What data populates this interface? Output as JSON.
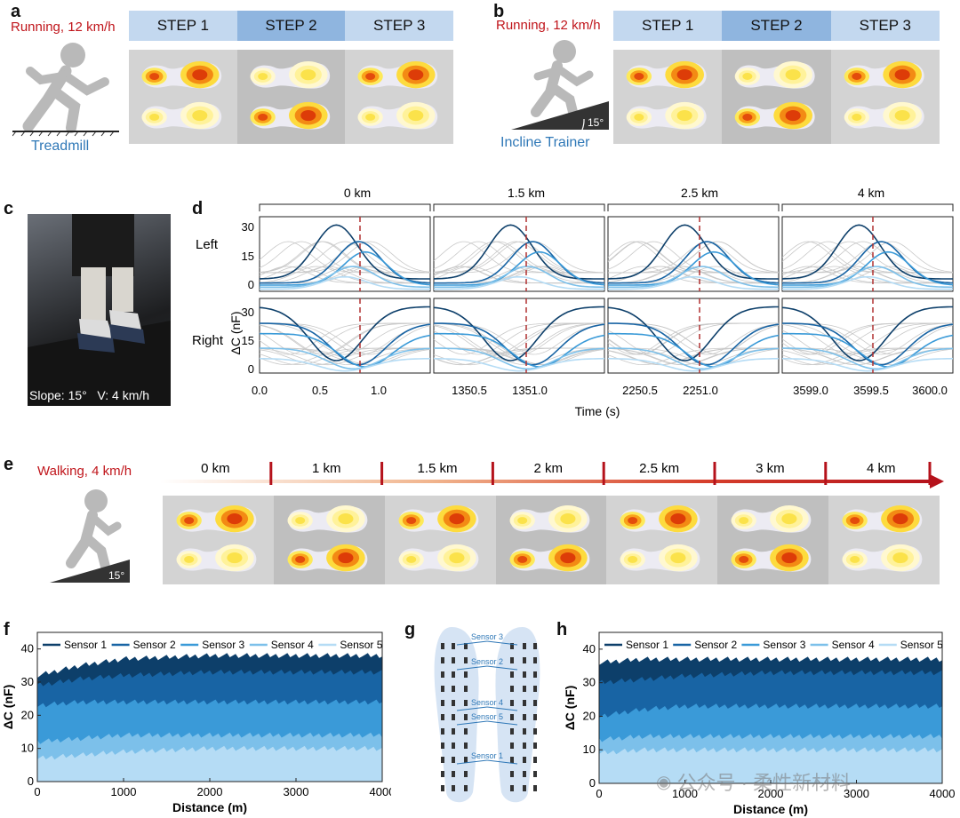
{
  "panel_a": {
    "letter": "a",
    "mode": "Running, 12 km/h",
    "device": "Treadmill",
    "steps": [
      "STEP 1",
      "STEP 2",
      "STEP 3"
    ]
  },
  "panel_b": {
    "letter": "b",
    "mode": "Running, 12 km/h",
    "device": "Incline Trainer",
    "angle": "15°",
    "steps": [
      "STEP 1",
      "STEP 2",
      "STEP 3"
    ]
  },
  "panel_c": {
    "letter": "c",
    "caption": "Slope: 15°   V: 4 km/h"
  },
  "panel_d": {
    "letter": "d",
    "segments": [
      "0 km",
      "1.5 km",
      "2.5 km",
      "4 km"
    ],
    "row_labels": [
      "Left",
      "Right"
    ],
    "ylabel": "ΔC (nF)",
    "xlabel": "Time (s)",
    "yticks_left": [
      "30",
      "15",
      "0"
    ],
    "yticks_right": [
      "30",
      "15",
      "0"
    ],
    "xticks": [
      [
        "0.0",
        "0.5",
        "1.0"
      ],
      [
        "1350.5",
        "1351.0"
      ],
      [
        "2250.5",
        "2251.0"
      ],
      [
        "3599.0",
        "3599.5",
        "3600.0"
      ]
    ]
  },
  "panel_e": {
    "letter": "e",
    "mode": "Walking, 4 km/h",
    "angle": "15°",
    "distances": [
      "0 km",
      "1 km",
      "1.5 km",
      "2 km",
      "2.5 km",
      "3 km",
      "4 km"
    ]
  },
  "panel_f": {
    "letter": "f",
    "ylabel": "ΔC (nF)",
    "xlabel": "Distance (m)",
    "legend": [
      "Sensor 1",
      "Sensor 2",
      "Sensor 3",
      "Sensor 4",
      "Sensor 5"
    ],
    "yticks": [
      "40",
      "30",
      "20",
      "10",
      "0"
    ],
    "xticks": [
      "0",
      "1000",
      "2000",
      "3000",
      "4000"
    ]
  },
  "panel_g": {
    "letter": "g",
    "sensor_labels": [
      "Sensor 3",
      "Sensor 2",
      "Sensor 4",
      "Sensor 5",
      "Sensor 1"
    ]
  },
  "panel_h": {
    "letter": "h",
    "ylabel": "ΔC (nF)",
    "xlabel": "Distance (m)",
    "legend": [
      "Sensor 1",
      "Sensor 2",
      "Sensor 3",
      "Sensor 4",
      "Sensor 5"
    ],
    "yticks": [
      "40",
      "30",
      "20",
      "10",
      "0"
    ],
    "xticks": [
      "0",
      "1000",
      "2000",
      "3000",
      "4000"
    ]
  },
  "watermark": "公众号 · 柔性新材料",
  "colors": {
    "accent_red": "#c0151b",
    "accent_blue": "#2f78b7",
    "step_bar": "#c3d8ef",
    "step_bar_dark": "#8fb5df",
    "sensor_colors": [
      "#0d3f6a",
      "#1864a4",
      "#3a9ad8",
      "#7cc0ea",
      "#b5dcf5"
    ]
  },
  "chart_data": [
    {
      "type": "area",
      "panel": "f",
      "xlabel": "Distance (m)",
      "ylabel": "ΔC (nF)",
      "xlim": [
        0,
        4000
      ],
      "ylim": [
        0,
        45
      ],
      "x": [
        0,
        500,
        1000,
        2000,
        3000,
        4000
      ],
      "series": [
        {
          "name": "Sensor 1",
          "values": [
            32,
            35,
            37,
            38,
            38,
            38
          ]
        },
        {
          "name": "Sensor 2",
          "values": [
            29,
            31,
            32,
            33,
            33,
            33
          ]
        },
        {
          "name": "Sensor 3",
          "values": [
            23,
            24,
            24,
            24,
            24,
            24
          ]
        },
        {
          "name": "Sensor 4",
          "values": [
            12,
            13,
            14,
            14,
            14,
            14
          ]
        },
        {
          "name": "Sensor 5",
          "values": [
            7,
            8,
            9,
            10,
            10,
            10
          ]
        }
      ],
      "legend_position": "top"
    },
    {
      "type": "area",
      "panel": "h",
      "xlabel": "Distance (m)",
      "ylabel": "ΔC (nF)",
      "xlim": [
        0,
        4000
      ],
      "ylim": [
        0,
        45
      ],
      "x": [
        0,
        500,
        1000,
        2000,
        3000,
        4000
      ],
      "series": [
        {
          "name": "Sensor 1",
          "values": [
            36,
            37,
            37,
            37,
            37,
            37
          ]
        },
        {
          "name": "Sensor 2",
          "values": [
            30,
            31,
            32,
            33,
            33,
            33
          ]
        },
        {
          "name": "Sensor 3",
          "values": [
            20,
            22,
            23,
            23,
            23,
            23
          ]
        },
        {
          "name": "Sensor 4",
          "values": [
            13,
            14,
            14,
            14,
            14,
            14
          ]
        },
        {
          "name": "Sensor 5",
          "values": [
            9,
            10,
            10,
            10,
            10,
            10
          ]
        }
      ],
      "legend_position": "top"
    }
  ]
}
